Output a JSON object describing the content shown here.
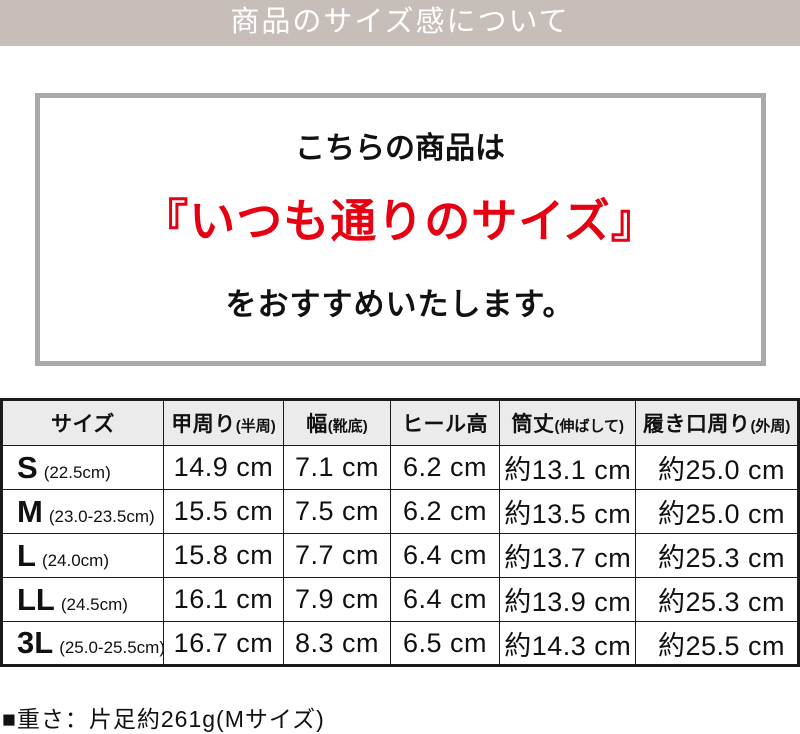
{
  "banner": {
    "title": "商品のサイズ感について",
    "bg_color": "#c7beba",
    "text_color": "#ffffff"
  },
  "recommendation": {
    "line1": "こちらの商品は",
    "highlight": "『いつも通りのサイズ』",
    "highlight_color": "#e60012",
    "line3": "をおすすめいたします。",
    "border_color": "#a9a9a9"
  },
  "size_table": {
    "columns": [
      {
        "main": "サイズ",
        "note": ""
      },
      {
        "main": "甲周り",
        "note": "(半周)"
      },
      {
        "main": "幅",
        "note": "(靴底)"
      },
      {
        "main": "ヒール高",
        "note": ""
      },
      {
        "main": "筒丈",
        "note": "(伸ばして)"
      },
      {
        "main": "履き口周り",
        "note": "(外周)"
      }
    ],
    "col_widths": [
      "20.3%",
      "15.1%",
      "13.4%",
      "13.7%",
      "17.1%",
      "20.4%"
    ],
    "header_bg": "#ebebeb",
    "rows": [
      {
        "size": "S",
        "range": "(22.5cm)",
        "values": [
          "14.9 cm",
          "7.1 cm",
          "6.2 cm",
          "約13.1 cm",
          "約25.0 cm"
        ]
      },
      {
        "size": "M",
        "range": "(23.0-23.5cm)",
        "values": [
          "15.5 cm",
          "7.5 cm",
          "6.2 cm",
          "約13.5 cm",
          "約25.0 cm"
        ]
      },
      {
        "size": "L",
        "range": "(24.0cm)",
        "values": [
          "15.8 cm",
          "7.7 cm",
          "6.4 cm",
          "約13.7 cm",
          "約25.3 cm"
        ]
      },
      {
        "size": "LL",
        "range": "(24.5cm)",
        "values": [
          "16.1 cm",
          "7.9 cm",
          "6.4 cm",
          "約13.9 cm",
          "約25.3 cm"
        ]
      },
      {
        "size": "3L",
        "range": "(25.0-25.5cm)",
        "values": [
          "16.7 cm",
          "8.3 cm",
          "6.5 cm",
          "約14.3 cm",
          "約25.5 cm"
        ]
      }
    ]
  },
  "footer": {
    "weight_note": "■重さ：片足約261g(Mサイズ)"
  }
}
